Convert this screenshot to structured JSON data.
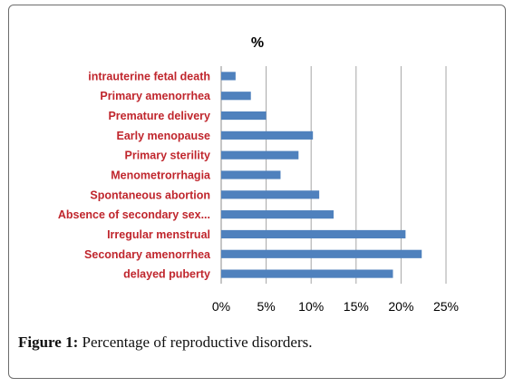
{
  "figure": {
    "caption_label": "Figure 1:",
    "caption_text": " Percentage of reproductive disorders."
  },
  "chart_data": {
    "type": "bar",
    "orientation": "horizontal",
    "title": "%",
    "categories": [
      "intrauterine fetal death",
      "Primary amenorrhea",
      "Premature delivery",
      "Early menopause",
      "Primary sterility",
      "Menometrorrhagia",
      "Spontaneous abortion",
      "Absence of secondary sex...",
      "Irregular menstrual",
      "Secondary amenorrhea",
      "delayed puberty"
    ],
    "values": [
      1.6,
      3.3,
      5.0,
      10.2,
      8.6,
      6.6,
      10.9,
      12.5,
      20.5,
      22.3,
      19.1
    ],
    "xlim": [
      0,
      25
    ],
    "xticks": [
      "0%",
      "5%",
      "10%",
      "15%",
      "20%",
      "25%"
    ],
    "xgrid": true,
    "legend": "none",
    "bar_color": "#4f81bd",
    "label_color": "#c0262d"
  }
}
